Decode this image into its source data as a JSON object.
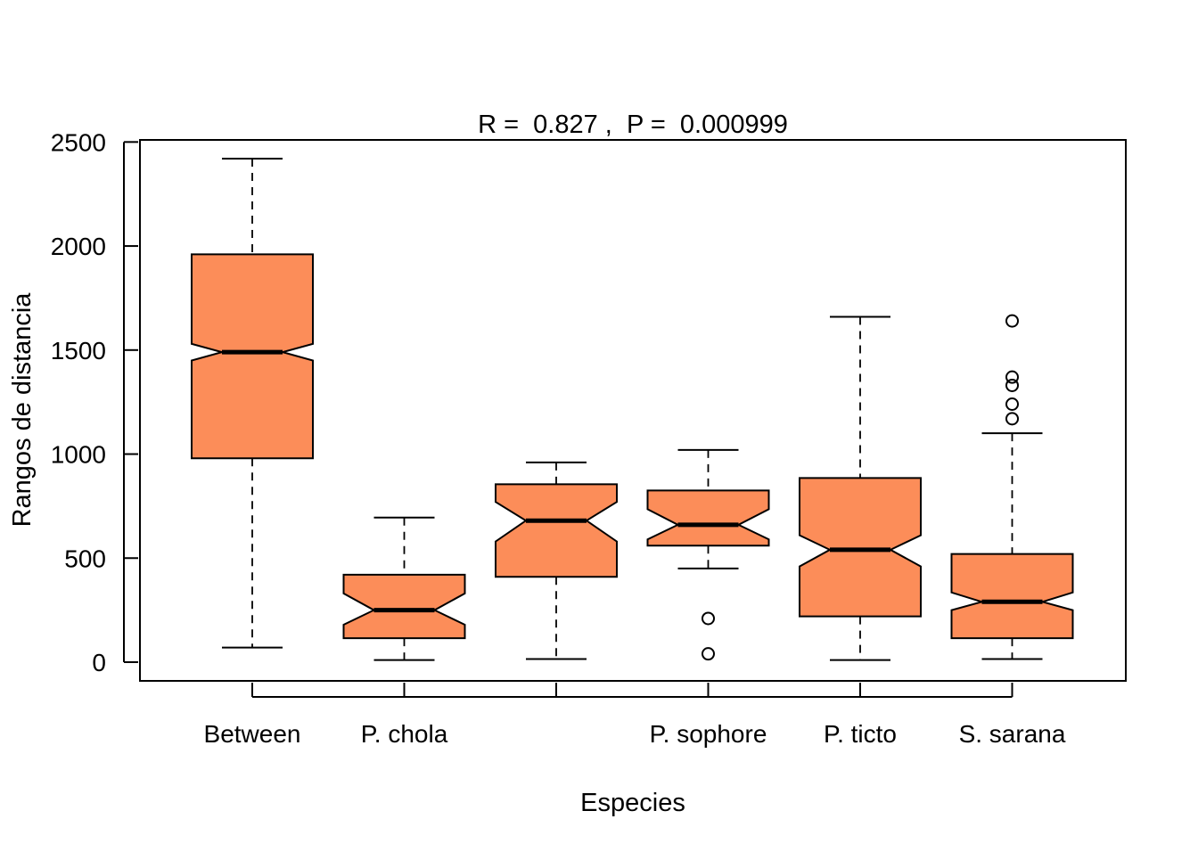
{
  "chart_data": {
    "type": "boxplot",
    "title": "R =  0.827 ,  P =  0.000999",
    "xlabel": "Especies",
    "ylabel": "Rangos de distancia",
    "ylim": [
      -90,
      2510
    ],
    "yticks": [
      0,
      500,
      1000,
      1500,
      2000,
      2500
    ],
    "notched": true,
    "grid": false,
    "colors": {
      "box_fill": "#FC8D59",
      "stroke": "#000000",
      "background": "#ffffff"
    },
    "groups": [
      {
        "label": "Between",
        "whisker_low": 70,
        "q1": 980,
        "median": 1490,
        "q3": 1960,
        "whisker_high": 2420,
        "notch": [
          1450,
          1530
        ],
        "outliers": []
      },
      {
        "label": "P. chola",
        "whisker_low": 10,
        "q1": 115,
        "median": 250,
        "q3": 420,
        "whisker_high": 695,
        "notch": [
          180,
          330
        ],
        "outliers": []
      },
      {
        "label": "",
        "whisker_low": 15,
        "q1": 410,
        "median": 680,
        "q3": 855,
        "whisker_high": 960,
        "notch": [
          580,
          770
        ],
        "outliers": []
      },
      {
        "label": "P. sophore",
        "whisker_low": 450,
        "q1": 560,
        "median": 660,
        "q3": 825,
        "whisker_high": 1020,
        "notch": [
          590,
          735
        ],
        "outliers": [
          210,
          40
        ]
      },
      {
        "label": "P. ticto",
        "whisker_low": 10,
        "q1": 220,
        "median": 540,
        "q3": 885,
        "whisker_high": 1660,
        "notch": [
          460,
          610
        ],
        "outliers": []
      },
      {
        "label": "S. sarana",
        "whisker_low": 15,
        "q1": 115,
        "median": 290,
        "q3": 520,
        "whisker_high": 1100,
        "notch": [
          250,
          335
        ],
        "outliers": [
          1640,
          1370,
          1330,
          1240,
          1170
        ]
      }
    ]
  }
}
